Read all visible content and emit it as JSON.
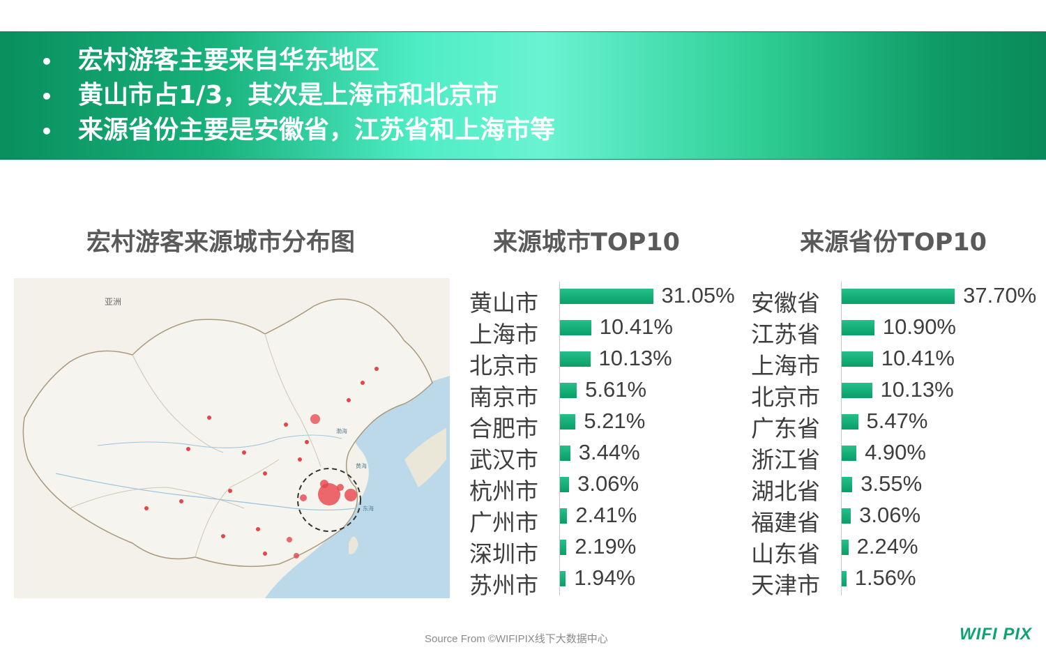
{
  "header": {
    "bullets": [
      "宏村游客主要来自华东地区",
      "黄山市占1/3，其次是上海市和北京市",
      "来源省份主要是安徽省，江苏省和上海市等"
    ],
    "bullet_symbol": "•"
  },
  "map": {
    "title": "宏村游客来源城市分布图",
    "labels": {
      "asia": "亚洲",
      "bohai": "渤海",
      "yellow_sea": "黄海",
      "east_sea": "东海"
    },
    "highlight_color": "#e8434a"
  },
  "colors": {
    "accent": "#0fa370",
    "banner_start": "#0a8f5f",
    "banner_mid": "#6af3d2",
    "text": "#3e3e3e"
  },
  "chart_data": [
    {
      "type": "bar",
      "orientation": "horizontal",
      "title": "来源城市TOP10",
      "categories": [
        "黄山市",
        "上海市",
        "北京市",
        "南京市",
        "合肥市",
        "武汉市",
        "杭州市",
        "广州市",
        "深圳市",
        "苏州市"
      ],
      "values": [
        31.05,
        10.41,
        10.13,
        5.61,
        5.21,
        3.44,
        3.06,
        2.41,
        2.19,
        1.94
      ],
      "value_labels": [
        "31.05%",
        "10.41%",
        "10.13%",
        "5.61%",
        "5.21%",
        "3.44%",
        "3.06%",
        "2.41%",
        "2.19%",
        "1.94%"
      ],
      "unit": "%"
    },
    {
      "type": "bar",
      "orientation": "horizontal",
      "title": "来源省份TOP10",
      "categories": [
        "安徽省",
        "江苏省",
        "上海市",
        "北京市",
        "广东省",
        "浙江省",
        "湖北省",
        "福建省",
        "山东省",
        "天津市"
      ],
      "values": [
        37.7,
        10.9,
        10.41,
        10.13,
        5.47,
        4.9,
        3.55,
        3.06,
        2.24,
        1.56
      ],
      "value_labels": [
        "37.70%",
        "10.90%",
        "10.41%",
        "10.13%",
        "5.47%",
        "4.90%",
        "3.55%",
        "3.06%",
        "2.24%",
        "1.56%"
      ],
      "unit": "%"
    }
  ],
  "footer": {
    "source": "Source From ©WIFIPIX线下大数据中心",
    "logo": "WIFI PIX"
  }
}
